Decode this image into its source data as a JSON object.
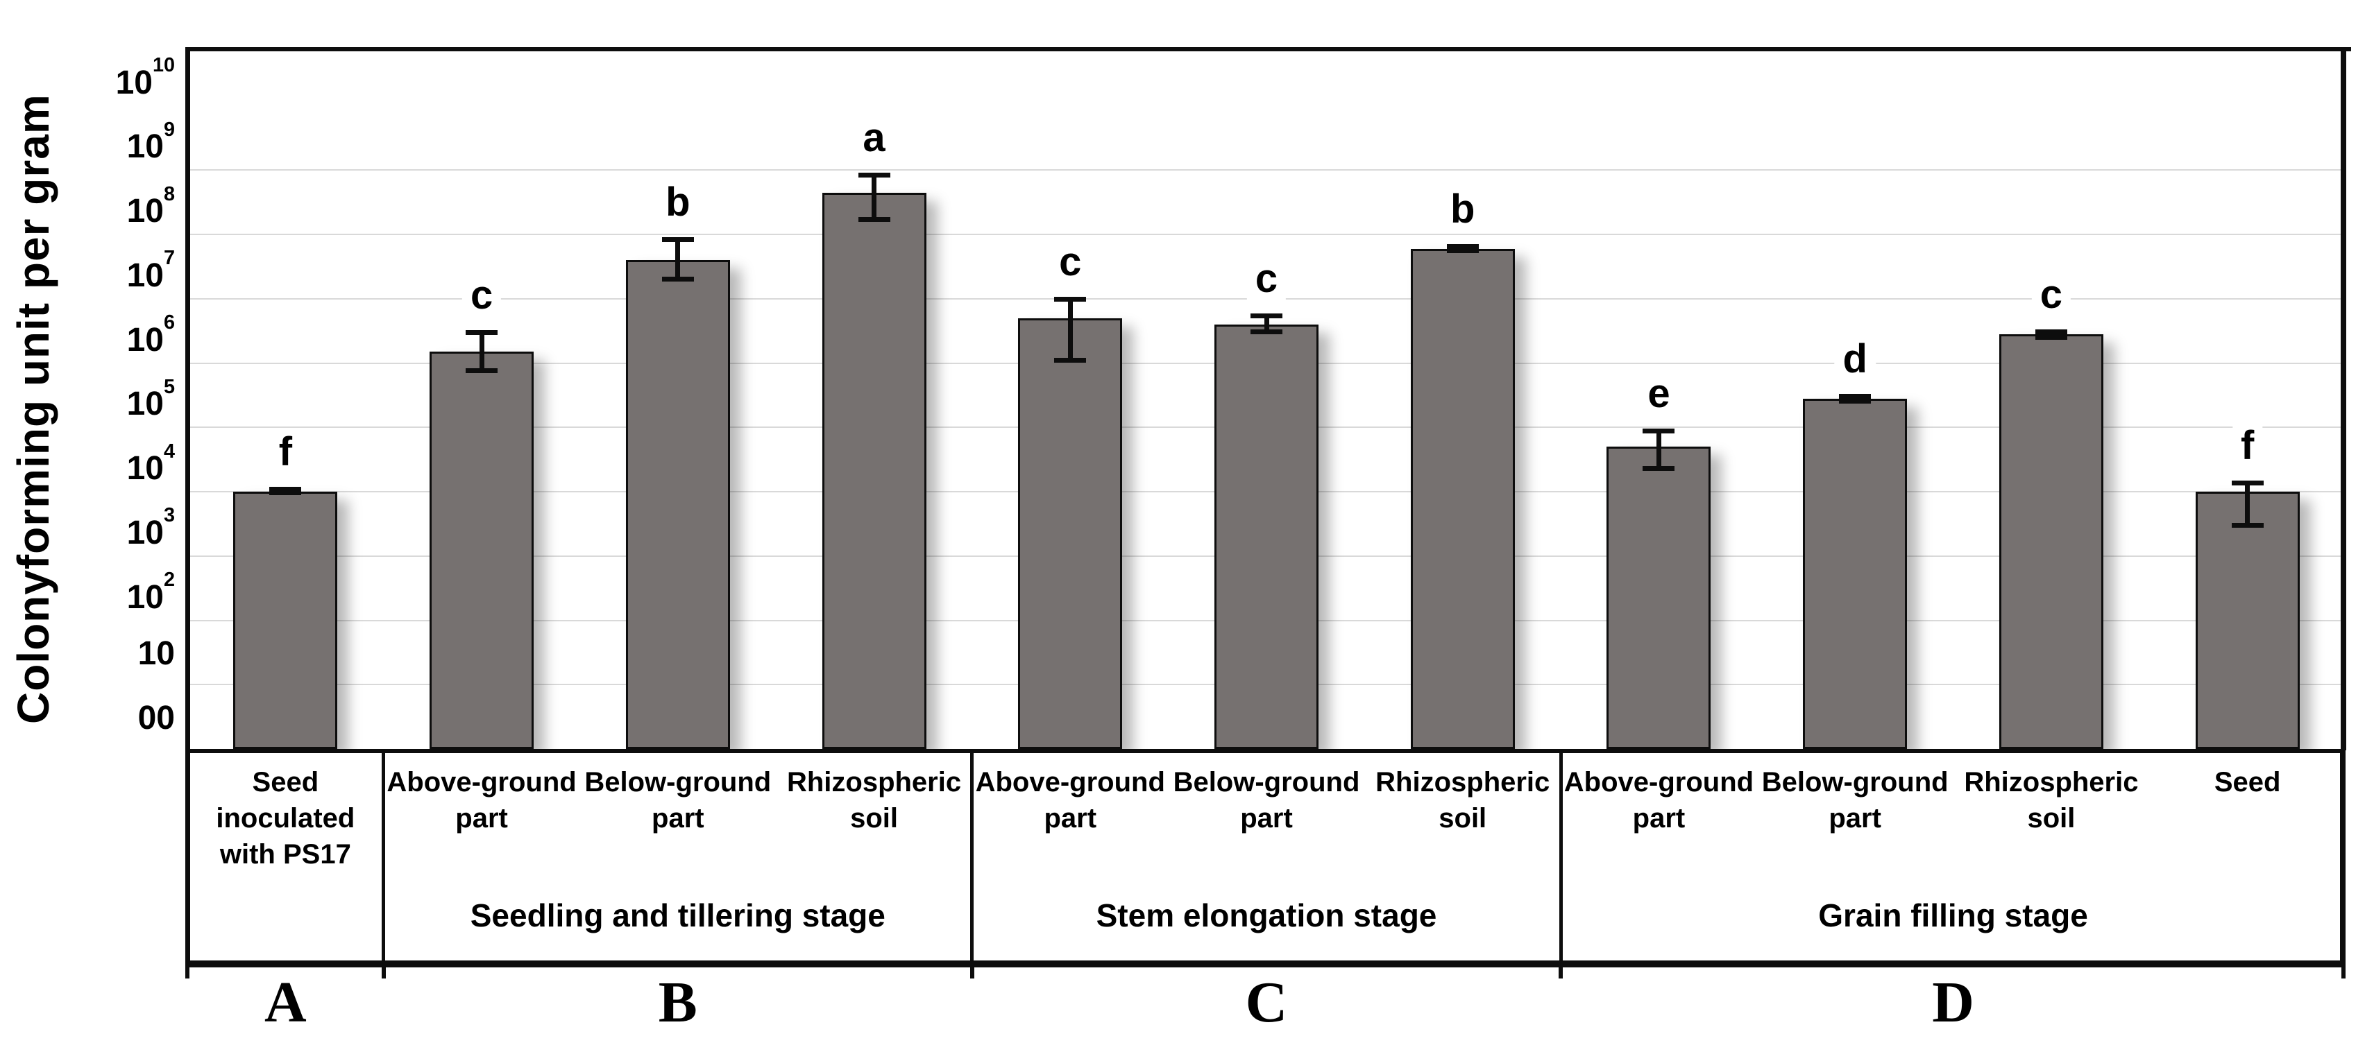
{
  "y_axis": {
    "title": "Colonyforming unit per gram",
    "ticks": [
      {
        "exp": 0,
        "text": "00",
        "sup": ""
      },
      {
        "exp": 1,
        "text": "10",
        "sup": ""
      },
      {
        "exp": 2,
        "text": "10",
        "sup": "2"
      },
      {
        "exp": 3,
        "text": "10",
        "sup": "3"
      },
      {
        "exp": 4,
        "text": "10",
        "sup": "4"
      },
      {
        "exp": 5,
        "text": "10",
        "sup": "5"
      },
      {
        "exp": 6,
        "text": "10",
        "sup": "6"
      },
      {
        "exp": 7,
        "text": "10",
        "sup": "7"
      },
      {
        "exp": 8,
        "text": "10",
        "sup": "8"
      },
      {
        "exp": 9,
        "text": "10",
        "sup": "9"
      },
      {
        "exp": 10,
        "text": "10",
        "sup": "10"
      }
    ]
  },
  "chart_data": {
    "type": "bar",
    "title": "",
    "ylabel": "Colonyforming unit per gram",
    "y_scale": "log10",
    "ylim": [
      1,
      10000000000
    ],
    "grid": true,
    "bar_color": "#767170",
    "bar_outline": "#0d0d0d",
    "gridline_color": "#d9d9d9",
    "groups": [
      {
        "panel": "A",
        "stage": "",
        "bars": [
          {
            "label": "Seed inoculated with PS17",
            "value": 10000,
            "err_lo": 9500,
            "err_hi": 11000,
            "letter": "f"
          }
        ]
      },
      {
        "panel": "B",
        "stage": "Seedling and tillering stage",
        "bars": [
          {
            "label": "Above-ground part",
            "value": 1500000,
            "err_lo": 750000,
            "err_hi": 3000000,
            "letter": "c"
          },
          {
            "label": "Below-ground part",
            "value": 40000000,
            "err_lo": 20000000,
            "err_hi": 85000000,
            "letter": "b"
          },
          {
            "label": "Rhizospheric soil",
            "value": 450000000,
            "err_lo": 170000000,
            "err_hi": 850000000,
            "letter": "a"
          }
        ]
      },
      {
        "panel": "C",
        "stage": "Stem elongation stage",
        "bars": [
          {
            "label": "Above-ground part",
            "value": 5000000,
            "err_lo": 1100000,
            "err_hi": 10000000,
            "letter": "c"
          },
          {
            "label": "Below-ground part",
            "value": 4000000,
            "err_lo": 3000000,
            "err_hi": 5500000,
            "letter": "c"
          },
          {
            "label": "Rhizospheric soil",
            "value": 60000000,
            "err_lo": 55000000,
            "err_hi": 65000000,
            "letter": "b"
          }
        ]
      },
      {
        "panel": "D",
        "stage": "Grain filling stage",
        "bars": [
          {
            "label": "Above-ground part",
            "value": 50000,
            "err_lo": 23000,
            "err_hi": 90000,
            "letter": "e"
          },
          {
            "label": "Below-ground part",
            "value": 280000,
            "err_lo": 250000,
            "err_hi": 310000,
            "letter": "d"
          },
          {
            "label": "Rhizospheric soil",
            "value": 2800000,
            "err_lo": 2500000,
            "err_hi": 3100000,
            "letter": "c"
          },
          {
            "label": "Seed",
            "value": 10000,
            "err_lo": 3000,
            "err_hi": 14000,
            "letter": "f"
          }
        ]
      }
    ]
  }
}
